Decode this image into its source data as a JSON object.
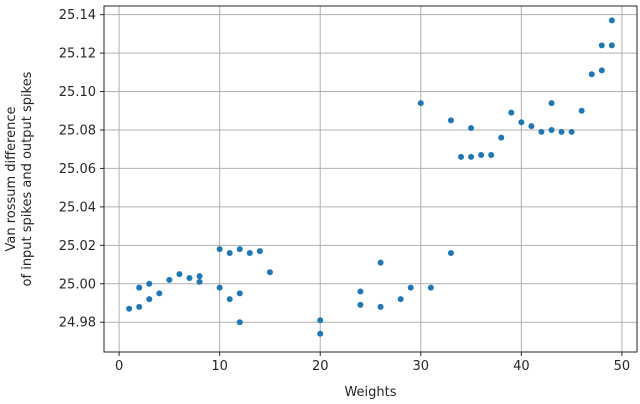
{
  "chart_data": {
    "type": "scatter",
    "xlabel": "Weights",
    "ylabel_lines": [
      "Van rossum difference",
      "of input spikes and output spikes"
    ],
    "xlim": [
      -1.5,
      51.5
    ],
    "ylim": [
      24.9645,
      25.1445
    ],
    "xticks": [
      0,
      10,
      20,
      30,
      40,
      50
    ],
    "yticks": [
      24.98,
      25.0,
      25.02,
      25.04,
      25.06,
      25.08,
      25.1,
      25.12,
      25.14
    ],
    "ytick_labels": [
      "24.98",
      "25.00",
      "25.02",
      "25.04",
      "25.06",
      "25.08",
      "25.10",
      "25.12",
      "25.14"
    ],
    "grid": true,
    "marker_color": "#1f77b4",
    "series": [
      {
        "points": [
          [
            1,
            24.987
          ],
          [
            2,
            24.988
          ],
          [
            2,
            24.998
          ],
          [
            3,
            24.992
          ],
          [
            3,
            25.0
          ],
          [
            4,
            24.995
          ],
          [
            5,
            25.002
          ],
          [
            6,
            25.005
          ],
          [
            7,
            25.003
          ],
          [
            8,
            25.001
          ],
          [
            8,
            25.004
          ],
          [
            10,
            25.018
          ],
          [
            10,
            24.998
          ],
          [
            11,
            25.016
          ],
          [
            11,
            24.992
          ],
          [
            12,
            25.018
          ],
          [
            12,
            24.995
          ],
          [
            12,
            24.98
          ],
          [
            13,
            25.016
          ],
          [
            14,
            25.017
          ],
          [
            15,
            25.006
          ],
          [
            20,
            24.981
          ],
          [
            20,
            24.974
          ],
          [
            24,
            24.996
          ],
          [
            24,
            24.989
          ],
          [
            26,
            25.011
          ],
          [
            26,
            24.988
          ],
          [
            28,
            24.992
          ],
          [
            29,
            24.998
          ],
          [
            30,
            25.094
          ],
          [
            31,
            24.998
          ],
          [
            33,
            25.016
          ],
          [
            33,
            25.085
          ],
          [
            34,
            25.066
          ],
          [
            35,
            25.066
          ],
          [
            35,
            25.081
          ],
          [
            36,
            25.067
          ],
          [
            37,
            25.067
          ],
          [
            38,
            25.076
          ],
          [
            39,
            25.089
          ],
          [
            40,
            25.084
          ],
          [
            41,
            25.082
          ],
          [
            42,
            25.079
          ],
          [
            43,
            25.094
          ],
          [
            43,
            25.08
          ],
          [
            44,
            25.079
          ],
          [
            45,
            25.079
          ],
          [
            46,
            25.09
          ],
          [
            47,
            25.109
          ],
          [
            48,
            25.111
          ],
          [
            48,
            25.124
          ],
          [
            49,
            25.124
          ],
          [
            49,
            25.137
          ]
        ]
      }
    ]
  }
}
